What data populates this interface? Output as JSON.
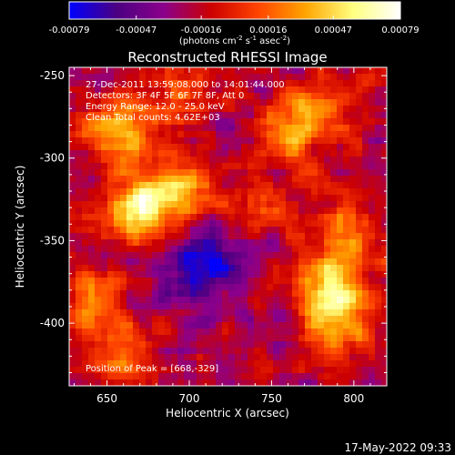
{
  "chart_data": {
    "type": "heatmap",
    "title": "Reconstructed RHESSI Image",
    "colorbar": {
      "ticks": [
        "-0.00079",
        "-0.00047",
        "-0.00016",
        "0.00016",
        "0.00047",
        "0.00079"
      ],
      "tick_values": [
        -0.00079,
        -0.00047,
        -0.00016,
        0.00016,
        0.00047,
        0.00079
      ],
      "range": [
        -0.00079,
        0.00079
      ],
      "unit_base": "(photons cm",
      "unit_exp1": "-2",
      "unit_mid": " s",
      "unit_exp2": "-1",
      "unit_mid2": " asec",
      "unit_exp3": "-2",
      "unit_end": ")",
      "colormap": [
        "#0000ff",
        "#4b0082",
        "#8b008b",
        "#cc0000",
        "#ff4500",
        "#ffa500",
        "#ffff80",
        "#ffffff"
      ]
    },
    "xlabel": "Heliocentric X (arcsec)",
    "ylabel": "Heliocentric Y (arcsec)",
    "xlim": [
      627,
      820
    ],
    "ylim": [
      -438,
      -245
    ],
    "xticks": [
      650,
      700,
      750,
      800
    ],
    "xtick_labels": [
      "650",
      "700",
      "750",
      "800"
    ],
    "yticks": [
      -250,
      -300,
      -350,
      -400
    ],
    "ytick_labels": [
      "-250",
      "-300",
      "-350",
      "-400"
    ],
    "annotations": [
      "27-Dec-2011 13:59:08.000 to 14:01:44.000",
      "Detectors: 3F 4F 5F 6F 7F 8F, Att 0",
      "Energy Range: 12.0 - 25.0 keV",
      "Clean      Total counts: 4.62E+03"
    ],
    "peak_label": "Position of Peak = [668,-329]",
    "peak": [
      668,
      -329
    ],
    "sources": [
      {
        "x": 668,
        "y": -329,
        "intensity": 1.0
      },
      {
        "x": 695,
        "y": -318,
        "intensity": 0.75
      },
      {
        "x": 655,
        "y": -285,
        "intensity": 0.7
      },
      {
        "x": 785,
        "y": -378,
        "intensity": 0.9
      },
      {
        "x": 790,
        "y": -402,
        "intensity": 0.75
      },
      {
        "x": 795,
        "y": -345,
        "intensity": 0.55
      },
      {
        "x": 780,
        "y": -270,
        "intensity": 0.6
      },
      {
        "x": 760,
        "y": -285,
        "intensity": 0.5
      },
      {
        "x": 745,
        "y": -330,
        "intensity": 0.45
      },
      {
        "x": 640,
        "y": -385,
        "intensity": 0.55
      },
      {
        "x": 655,
        "y": -415,
        "intensity": 0.5
      },
      {
        "x": 690,
        "y": -265,
        "intensity": 0.45
      },
      {
        "x": 720,
        "y": -360,
        "intensity": -0.6
      },
      {
        "x": 700,
        "y": -375,
        "intensity": -0.45
      }
    ]
  },
  "footer": {
    "date": "17-May-2022 09:33"
  }
}
